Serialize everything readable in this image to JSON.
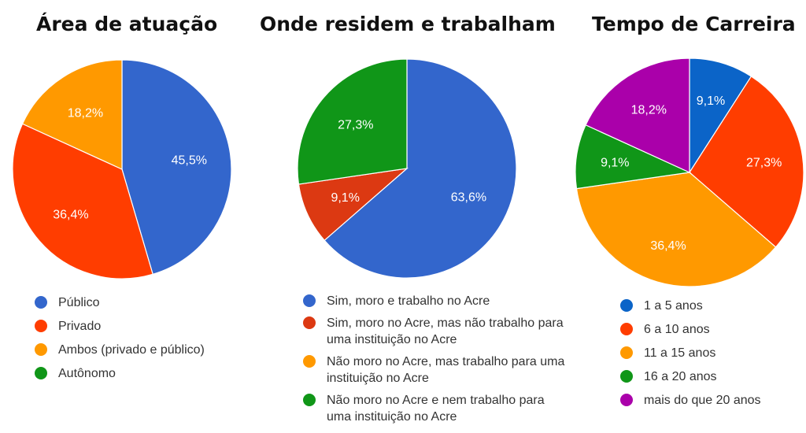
{
  "chart_data": [
    {
      "type": "pie",
      "title": "Área de atuação",
      "legend_position": "bottom",
      "slices": [
        {
          "label": "Público",
          "value": 45.5,
          "display": "45,5%",
          "color": "#3366cc"
        },
        {
          "label": "Privado",
          "value": 36.4,
          "display": "36,4%",
          "color": "#ff3d00"
        },
        {
          "label": "Ambos (privado e público)",
          "value": 18.2,
          "display": "18,2%",
          "color": "#ff9900"
        },
        {
          "label": "Autônomo",
          "value": 0,
          "display": "",
          "color": "#109618"
        }
      ]
    },
    {
      "type": "pie",
      "title": "Onde residem e trabalham",
      "legend_position": "bottom",
      "slices": [
        {
          "label": "Sim, moro e trabalho no Acre",
          "value": 63.6,
          "display": "63,6%",
          "color": "#3366cc"
        },
        {
          "label": "Sim, moro no Acre, mas não trabalho para uma instituição no Acre",
          "value": 9.1,
          "display": "9,1%",
          "color": "#dc3912"
        },
        {
          "label": "Não moro no Acre, mas trabalho para uma instituição no Acre",
          "value": 0,
          "display": "",
          "color": "#ff9900"
        },
        {
          "label": "Não moro no Acre e nem trabalho para uma instituição no Acre",
          "value": 27.3,
          "display": "27,3%",
          "color": "#109618"
        }
      ]
    },
    {
      "type": "pie",
      "title": "Tempo de Carreira",
      "legend_position": "bottom",
      "slices": [
        {
          "label": "1 a 5 anos",
          "value": 9.1,
          "display": "9,1%",
          "color": "#0b64c8"
        },
        {
          "label": "6 a 10 anos",
          "value": 27.3,
          "display": "27,3%",
          "color": "#ff3d00"
        },
        {
          "label": "11 a 15 anos",
          "value": 36.4,
          "display": "36,4%",
          "color": "#ff9900"
        },
        {
          "label": "16 a 20 anos",
          "value": 9.1,
          "display": "9,1%",
          "color": "#109618"
        },
        {
          "label": "mais do que 20 anos",
          "value": 18.2,
          "display": "18,2%",
          "color": "#aa00aa"
        }
      ]
    }
  ]
}
